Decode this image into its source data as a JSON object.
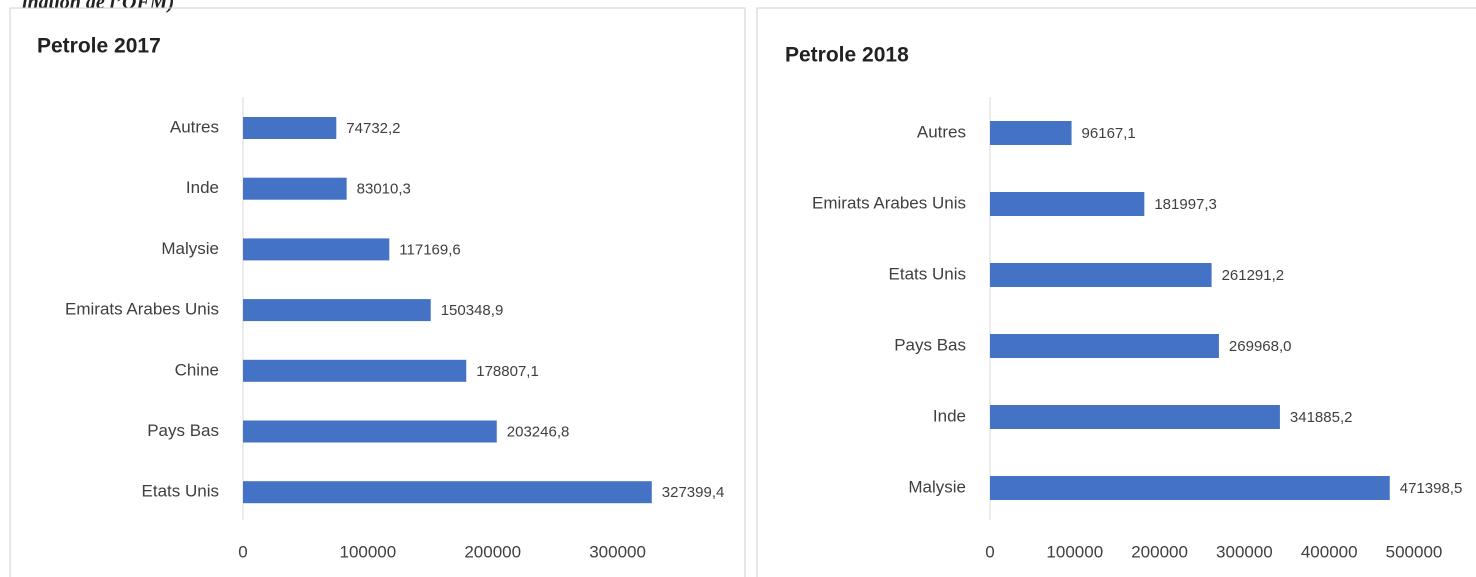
{
  "caption": "ination de l’OFM)",
  "chart_data": [
    {
      "type": "bar",
      "orientation": "horizontal",
      "title": "Petrole 2017",
      "color": "#4472c4",
      "categories": [
        "Autres",
        "Inde",
        "Malysie",
        "Emirats Arabes Unis",
        "Chine",
        "Pays Bas",
        "Etats Unis"
      ],
      "values": [
        74732.2,
        83010.3,
        117169.6,
        150348.9,
        178807.1,
        203246.8,
        327399.4
      ],
      "value_labels": [
        "74732,2",
        "83010,3",
        "117169,6",
        "150348,9",
        "178807,1",
        "203246,8",
        "327399,4"
      ],
      "xlim": [
        0,
        350000
      ],
      "xticks": [
        0,
        100000,
        200000,
        300000
      ]
    },
    {
      "type": "bar",
      "orientation": "horizontal",
      "title": "Petrole 2018",
      "color": "#4472c4",
      "categories": [
        "Autres",
        "Emirats Arabes Unis",
        "Etats Unis",
        "Pays Bas",
        "Inde",
        "Malysie"
      ],
      "values": [
        96167.1,
        181997.3,
        261291.2,
        269968.0,
        341885.2,
        471398.5
      ],
      "value_labels": [
        "96167,1",
        "181997,3",
        "261291,2",
        "269968,0",
        "341885,2",
        "471398,5"
      ],
      "xlim": [
        0,
        500000
      ],
      "xticks": [
        0,
        100000,
        200000,
        300000,
        400000,
        500000
      ]
    }
  ]
}
